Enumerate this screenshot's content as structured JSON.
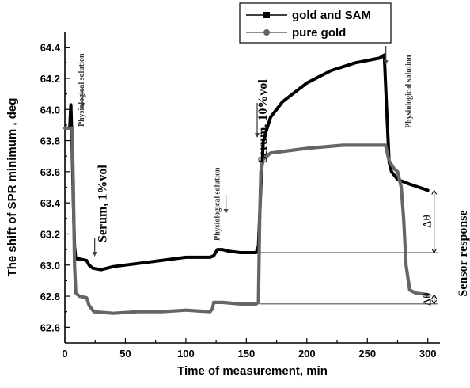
{
  "chart_data": {
    "type": "line",
    "xlabel": "Time of measurement, min",
    "ylabel": "The  shift of SPR minimum , deg",
    "xlim": [
      0,
      310
    ],
    "ylim": [
      62.5,
      64.5
    ],
    "x_ticks": [
      0,
      50,
      100,
      150,
      200,
      250,
      300
    ],
    "y_ticks": [
      62.6,
      62.8,
      63.0,
      63.2,
      63.4,
      63.6,
      63.8,
      64.0,
      64.2,
      64.4
    ],
    "legend_position": "top-right",
    "series": [
      {
        "name": "gold and SAM",
        "color": "#000000",
        "marker": "square",
        "points": [
          [
            0,
            63.88
          ],
          [
            4,
            63.88
          ],
          [
            5,
            64.03
          ],
          [
            6,
            63.75
          ],
          [
            7,
            63.4
          ],
          [
            8,
            63.12
          ],
          [
            9,
            63.04
          ],
          [
            12,
            63.04
          ],
          [
            18,
            63.03
          ],
          [
            20,
            63.0
          ],
          [
            23,
            62.98
          ],
          [
            30,
            62.97
          ],
          [
            40,
            62.99
          ],
          [
            60,
            63.01
          ],
          [
            80,
            63.03
          ],
          [
            100,
            63.05
          ],
          [
            120,
            63.05
          ],
          [
            123,
            63.06
          ],
          [
            126,
            63.1
          ],
          [
            130,
            63.1
          ],
          [
            135,
            63.09
          ],
          [
            145,
            63.08
          ],
          [
            158,
            63.08
          ],
          [
            160,
            63.12
          ],
          [
            162,
            63.5
          ],
          [
            164,
            63.8
          ],
          [
            170,
            63.95
          ],
          [
            180,
            64.05
          ],
          [
            200,
            64.17
          ],
          [
            220,
            64.25
          ],
          [
            240,
            64.3
          ],
          [
            260,
            64.33
          ],
          [
            264,
            64.35
          ],
          [
            266,
            64.0
          ],
          [
            268,
            63.66
          ],
          [
            270,
            63.6
          ],
          [
            275,
            63.55
          ],
          [
            285,
            63.52
          ],
          [
            300,
            63.48
          ]
        ]
      },
      {
        "name": "pure gold",
        "color": "#666666",
        "marker": "circle",
        "points": [
          [
            0,
            63.88
          ],
          [
            6,
            63.88
          ],
          [
            7,
            63.5
          ],
          [
            8,
            63.0
          ],
          [
            9,
            62.82
          ],
          [
            12,
            62.8
          ],
          [
            18,
            62.79
          ],
          [
            20,
            62.74
          ],
          [
            22,
            62.72
          ],
          [
            24,
            62.7
          ],
          [
            40,
            62.69
          ],
          [
            60,
            62.7
          ],
          [
            80,
            62.7
          ],
          [
            100,
            62.71
          ],
          [
            120,
            62.7
          ],
          [
            122,
            62.72
          ],
          [
            123,
            62.76
          ],
          [
            130,
            62.76
          ],
          [
            145,
            62.75
          ],
          [
            158,
            62.75
          ],
          [
            160,
            62.76
          ],
          [
            161,
            63.3
          ],
          [
            162,
            63.6
          ],
          [
            164,
            63.68
          ],
          [
            170,
            63.72
          ],
          [
            200,
            63.75
          ],
          [
            230,
            63.77
          ],
          [
            265,
            63.77
          ],
          [
            268,
            63.67
          ],
          [
            272,
            63.62
          ],
          [
            275,
            63.6
          ],
          [
            278,
            63.5
          ],
          [
            280,
            63.3
          ],
          [
            282,
            63.0
          ],
          [
            285,
            62.84
          ],
          [
            290,
            62.82
          ],
          [
            300,
            62.81
          ]
        ]
      }
    ],
    "annotations": [
      {
        "text": "Physiological solution",
        "x": 8
      },
      {
        "text": "Serum,  1%vol",
        "x": 22
      },
      {
        "text": "Physiological solution",
        "x": 124
      },
      {
        "text": "Serum,  10%vol",
        "x": 155
      },
      {
        "text": "Physiological solution",
        "x": 264
      }
    ],
    "deltas": [
      {
        "text": "Δθ",
        "y_from": 63.08,
        "y_to": 63.48
      },
      {
        "text": "Δθ",
        "y_from": 62.75,
        "y_to": 62.81
      }
    ],
    "side_label": "Sensor response"
  }
}
